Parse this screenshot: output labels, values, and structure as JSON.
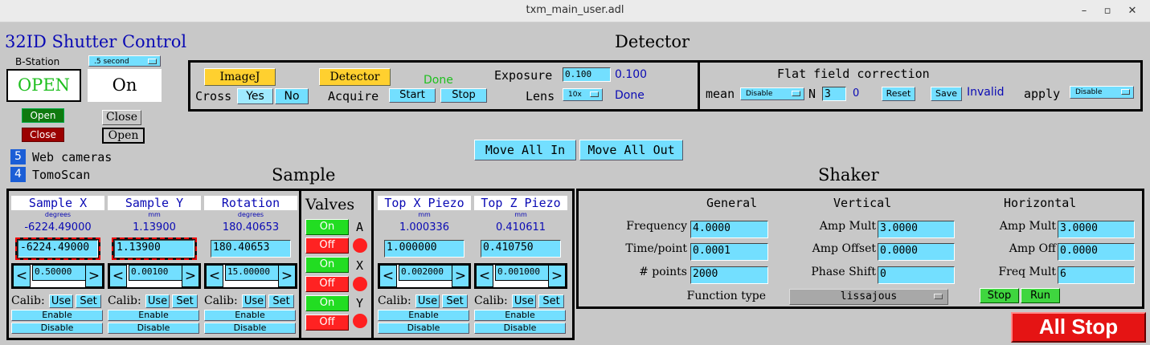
{
  "window": {
    "title": "txm_main_user.adl"
  },
  "shutter": {
    "title": "32ID Shutter Control",
    "station": "B-Station",
    "interval": ".5 second",
    "status": "OPEN",
    "state": "On",
    "open_label": "Open",
    "close_label": "Close",
    "close2_label": "Close",
    "open2_label": "Open"
  },
  "links": {
    "web_cameras_num": "5",
    "web_cameras": "Web cameras",
    "tomoscan_num": "4",
    "tomoscan": "TomoScan"
  },
  "detector": {
    "title": "Detector",
    "imagej": "ImageJ",
    "detector_btn": "Detector",
    "done1": "Done",
    "cross": "Cross",
    "yes": "Yes",
    "no": "No",
    "acquire": "Acquire",
    "start": "Start",
    "stop": "Stop",
    "exposure_label": "Exposure",
    "exposure_input": "0.100",
    "exposure_readback": "0.100",
    "lens_label": "Lens",
    "lens_value": "10x",
    "done2": "Done"
  },
  "flat": {
    "title": "Flat field correction",
    "mean": "mean",
    "mean_value": "Disable",
    "n_label": "N",
    "n_input": "3",
    "n_readback": "0",
    "reset": "Reset",
    "save": "Save",
    "status": "Invalid",
    "apply": "apply",
    "apply_value": "Disable"
  },
  "move": {
    "all_in": "Move All In",
    "all_out": "Move All Out"
  },
  "sample": {
    "title": "Sample",
    "calib": "Calib:",
    "use": "Use",
    "set": "Set",
    "enable": "Enable",
    "disable": "Disable",
    "motors": [
      {
        "name": "Sample X",
        "unit": "degrees",
        "readback": "-6224.49000",
        "setpoint": "-6224.49000",
        "step": "0.50000"
      },
      {
        "name": "Sample Y",
        "unit": "mm",
        "readback": "1.13900",
        "setpoint": "1.13900",
        "step": "0.00100"
      },
      {
        "name": "Rotation",
        "unit": "degrees",
        "readback": "180.40653",
        "setpoint": "180.40653",
        "step": "15.00000"
      }
    ]
  },
  "valves": {
    "title": "Valves",
    "on": "On",
    "off": "Off",
    "rows": [
      "A",
      "X",
      "Y"
    ]
  },
  "piezo": {
    "motors": [
      {
        "name": "Top X Piezo",
        "unit": "mm",
        "readback": "1.000336",
        "setpoint": "1.000000",
        "step": "0.002000"
      },
      {
        "name": "Top Z Piezo",
        "unit": "mm",
        "readback": "0.410611",
        "setpoint": "0.410750",
        "step": "0.001000"
      }
    ]
  },
  "shaker": {
    "title": "Shaker",
    "general": "General",
    "vertical": "Vertical",
    "horizontal": "Horizontal",
    "frequency_label": "Frequency",
    "frequency": "4.0000",
    "time_label": "Time/point",
    "time": "0.0001",
    "points_label": "# points",
    "points": "2000",
    "amp_mult_label": "Amp Mult",
    "v_amp_mult": "3.0000",
    "amp_offset_label": "Amp Offset",
    "v_amp_offset": "0.0000",
    "phase_label": "Phase Shift",
    "v_phase": "0",
    "h_amp_mult_label": "Amp Mult",
    "h_amp_mult": "3.0000",
    "h_amp_off_label": "Amp Off",
    "h_amp_off": "0.0000",
    "freq_mult_label": "Freq Mult",
    "h_freq_mult": "6",
    "function_label": "Function type",
    "function_value": "lissajous",
    "stop": "Stop",
    "run": "Run"
  },
  "all_stop": "All Stop"
}
